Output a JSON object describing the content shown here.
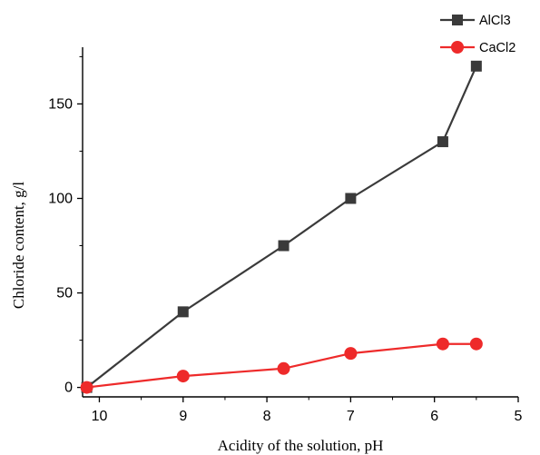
{
  "chart_data": {
    "type": "line",
    "title": "",
    "xlabel": "Acidity of the solution, pH",
    "ylabel": "Chloride content, g/l",
    "xlim": [
      10.2,
      5
    ],
    "ylim": [
      -5,
      180
    ],
    "x_reversed": true,
    "x_ticks": [
      10,
      9,
      8,
      7,
      6,
      5
    ],
    "x_tick_labels": [
      "10",
      "9",
      "8",
      "7",
      "6",
      "5"
    ],
    "y_ticks": [
      0,
      50,
      100,
      150
    ],
    "y_tick_labels": [
      "0",
      "50",
      "100",
      "150"
    ],
    "grid": false,
    "legend_position": "top-right",
    "series": [
      {
        "name": "AlCl3",
        "color": "#3a3a3a",
        "marker": "square",
        "x": [
          10.15,
          9,
          7.8,
          7,
          5.9,
          5.5
        ],
        "y": [
          0,
          40,
          75,
          100,
          130,
          170
        ]
      },
      {
        "name": "CaCl2",
        "color": "#ee2a2a",
        "marker": "circle",
        "x": [
          10.15,
          9,
          7.8,
          7,
          5.9,
          5.5
        ],
        "y": [
          0,
          6,
          10,
          18,
          23,
          23
        ]
      }
    ]
  }
}
